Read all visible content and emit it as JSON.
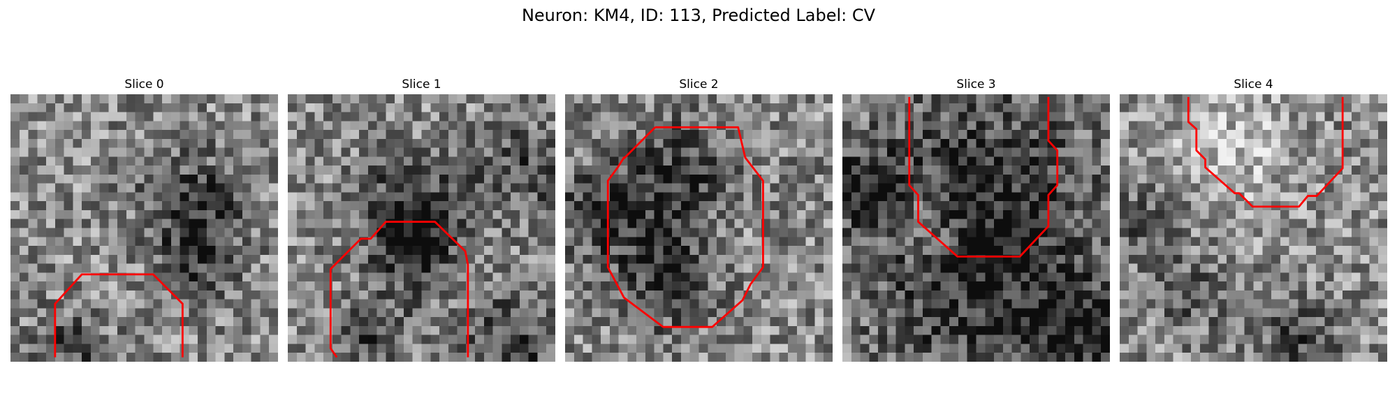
{
  "title": "Neuron: KM4, ID: 113, Predicted Label: CV",
  "grid_size": 30,
  "panels": [
    {
      "label": "Slice 0",
      "seed": 101,
      "blobs": [
        [
          20,
          12,
          4,
          -0.35
        ],
        [
          21,
          19,
          3,
          -0.25
        ],
        [
          6,
          28,
          3,
          -0.25
        ]
      ],
      "contour": [
        [
          5,
          29.5
        ],
        [
          5,
          23.5
        ],
        [
          8,
          20.2
        ],
        [
          16,
          20.2
        ],
        [
          19.3,
          23.5
        ],
        [
          19.3,
          29.5
        ]
      ]
    },
    {
      "label": "Slice 1",
      "seed": 202,
      "blobs": [
        [
          13,
          12,
          4,
          -0.35
        ],
        [
          14,
          17,
          3,
          -0.4
        ],
        [
          9,
          26,
          3,
          -0.3
        ],
        [
          25,
          27,
          4,
          -0.3
        ],
        [
          26,
          8,
          4,
          -0.25
        ]
      ],
      "contour": [
        [
          5.5,
          29.5
        ],
        [
          4.8,
          28.5
        ],
        [
          4.8,
          19.6
        ],
        [
          8.2,
          16.2
        ],
        [
          9.3,
          16.2
        ],
        [
          11,
          14.3
        ],
        [
          16.5,
          14.3
        ],
        [
          19.9,
          17.6
        ],
        [
          20.2,
          19.1
        ],
        [
          20.2,
          29.5
        ]
      ]
    },
    {
      "label": "Slice 2",
      "seed": 303,
      "blobs": [
        [
          12,
          11,
          6,
          -0.35
        ],
        [
          3,
          13,
          3,
          -0.25
        ],
        [
          10,
          21,
          4,
          -0.25
        ],
        [
          18,
          14,
          3,
          0.2
        ]
      ],
      "contour": [
        [
          10.1,
          3.7
        ],
        [
          19.4,
          3.7
        ],
        [
          20.2,
          7.1
        ],
        [
          22.2,
          9.7
        ],
        [
          22.2,
          19.4
        ],
        [
          20.8,
          21.3
        ],
        [
          19.9,
          23.1
        ],
        [
          16.5,
          26.1
        ],
        [
          11,
          26.1
        ],
        [
          6.6,
          22.8
        ],
        [
          4.8,
          19.4
        ],
        [
          4.8,
          9.7
        ],
        [
          5.9,
          8.2
        ],
        [
          6.6,
          7.1
        ],
        [
          6.6,
          7.2
        ],
        [
          10.1,
          3.7
        ]
      ]
    },
    {
      "label": "Slice 3",
      "seed": 404,
      "blobs": [
        [
          15,
          10,
          9,
          -0.3
        ],
        [
          9,
          14,
          3,
          0.25
        ],
        [
          2,
          10,
          3,
          -0.35
        ],
        [
          15,
          23,
          10,
          -0.25
        ],
        [
          27,
          26,
          4,
          -0.3
        ]
      ],
      "contour": [
        [
          7.5,
          0.3
        ],
        [
          7.5,
          10.2
        ],
        [
          8.5,
          11.3
        ],
        [
          8.5,
          14.3
        ],
        [
          12.9,
          18.2
        ],
        [
          19.9,
          18.2
        ],
        [
          23.1,
          14.8
        ],
        [
          23.1,
          11.3
        ],
        [
          24.1,
          10.2
        ],
        [
          24.1,
          6.3
        ],
        [
          23.1,
          5.2
        ],
        [
          23.1,
          0.3
        ]
      ]
    },
    {
      "label": "Slice 4",
      "seed": 505,
      "blobs": [
        [
          12,
          6,
          5,
          0.2
        ],
        [
          2,
          14,
          3,
          -0.25
        ],
        [
          20,
          27,
          3,
          -0.3
        ],
        [
          8,
          22,
          3,
          -0.2
        ]
      ],
      "contour": [
        [
          7.7,
          0.3
        ],
        [
          7.7,
          3.1
        ],
        [
          8.6,
          3.9
        ],
        [
          8.6,
          6.3
        ],
        [
          9.6,
          7.3
        ],
        [
          9.6,
          8.2
        ],
        [
          12.9,
          11.1
        ],
        [
          13.4,
          11.1
        ],
        [
          14.9,
          12.6
        ],
        [
          20.1,
          12.6
        ],
        [
          21.1,
          11.4
        ],
        [
          22.1,
          11.4
        ],
        [
          25,
          8.3
        ],
        [
          25,
          0.3
        ]
      ]
    }
  ],
  "colors": {
    "contour": "#ff0000"
  }
}
